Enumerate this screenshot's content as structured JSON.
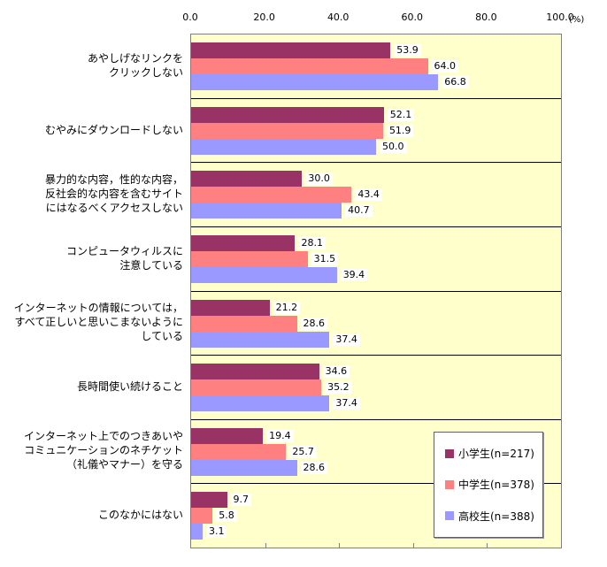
{
  "chart_data": {
    "type": "bar",
    "orientation": "horizontal",
    "title": "",
    "xlabel": "",
    "ylabel": "",
    "axis": {
      "min": 0,
      "max": 100,
      "ticks": [
        0,
        20,
        40,
        60,
        80,
        100
      ],
      "tick_decimals": 1,
      "unit_label": "(%)",
      "labels_position": "top"
    },
    "grid": "category-separator-lines-only",
    "plot_background": "#FFFFCC",
    "plot_border_color": "#808080",
    "separator_color": "#000000",
    "value_label_background": "#FFFFFF",
    "categories": [
      "あやしげなリンクを\nクリックしない",
      "むやみにダウンロードしない",
      "暴力的な内容，性的な内容，\n反社会的な内容を含むサイト\nにはなるべくアクセスしない",
      "コンピュータウィルスに\n注意している",
      "インターネットの情報については，\nすべて正しいと思いこまないように\nしている",
      "長時間使い続けること",
      "インターネット上でのつきあいや\nコミュニケーションのネチケット\n（礼儀やマナー）を守る",
      "このなかにはない"
    ],
    "series": [
      {
        "name": "小学生(n=217)",
        "color": "#993366",
        "values": [
          53.9,
          52.1,
          30.0,
          28.1,
          21.2,
          34.6,
          19.4,
          9.7
        ]
      },
      {
        "name": "中学生(n=378)",
        "color": "#FF8080",
        "values": [
          64.0,
          51.9,
          43.4,
          31.5,
          28.6,
          35.2,
          25.7,
          5.8
        ]
      },
      {
        "name": "高校生(n=388)",
        "color": "#9999FF",
        "values": [
          66.8,
          50.0,
          40.7,
          39.4,
          37.4,
          37.4,
          28.6,
          3.1
        ]
      }
    ],
    "legend": {
      "position": "inside-bottom-right",
      "items": [
        "小学生(n=217)",
        "中学生(n=378)",
        "高校生(n=388)"
      ]
    }
  }
}
